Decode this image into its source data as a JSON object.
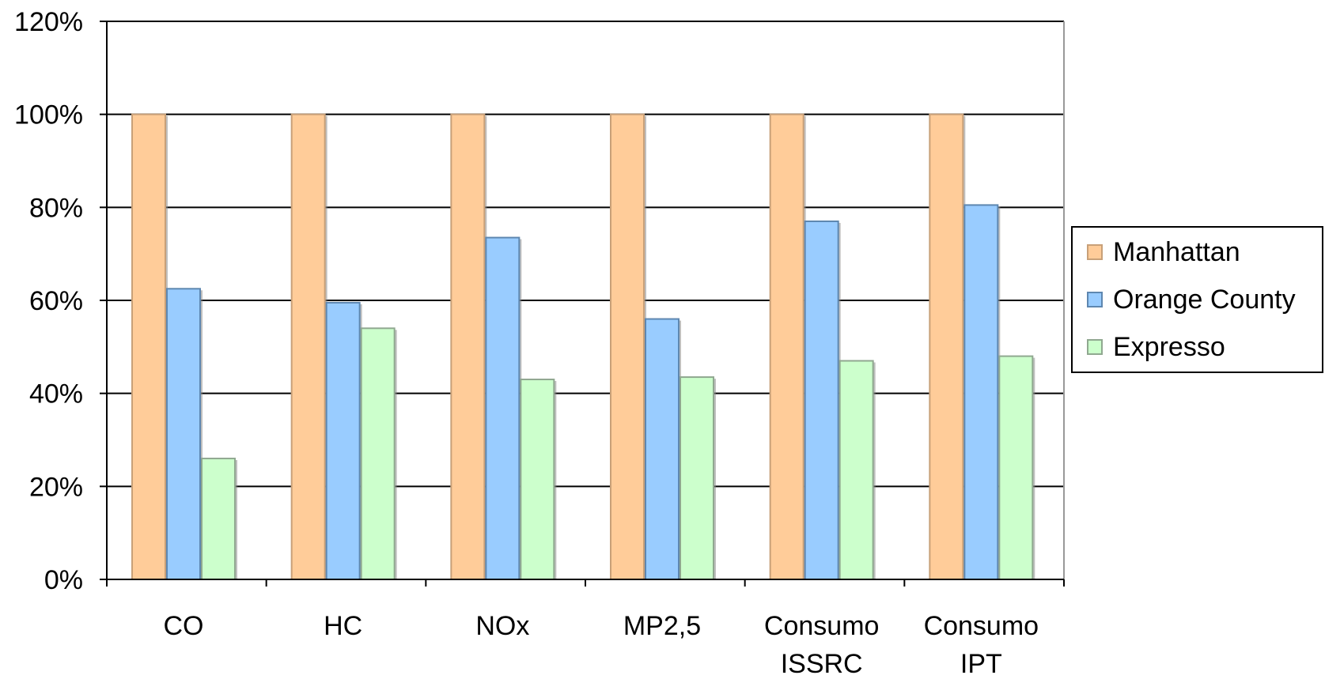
{
  "chart_data": {
    "type": "bar",
    "title": "",
    "xlabel": "",
    "ylabel": "",
    "categories": [
      [
        "CO"
      ],
      [
        "HC"
      ],
      [
        "NOx"
      ],
      [
        "MP2,5"
      ],
      [
        "Consumo",
        "ISSRC"
      ],
      [
        "Consumo",
        "IPT"
      ]
    ],
    "series": [
      {
        "name": "Manhattan",
        "color": "#FFCC99",
        "edge": "#C8A078",
        "values": [
          100,
          100,
          100,
          100,
          100,
          100
        ]
      },
      {
        "name": "Orange County",
        "color": "#99CCFF",
        "edge": "#5E87B0",
        "values": [
          62.5,
          59.5,
          73.5,
          56,
          77,
          80.5
        ]
      },
      {
        "name": "Expresso",
        "color": "#CCFFCC",
        "edge": "#90A890",
        "values": [
          26,
          54,
          43,
          43.5,
          47,
          48
        ]
      }
    ],
    "ylim": [
      0,
      120
    ],
    "yticks": [
      0,
      20,
      40,
      60,
      80,
      100,
      120
    ],
    "ytick_labels": [
      "0%",
      "20%",
      "40%",
      "60%",
      "80%",
      "100%",
      "120%"
    ],
    "grid": true,
    "legend_position": "right"
  }
}
